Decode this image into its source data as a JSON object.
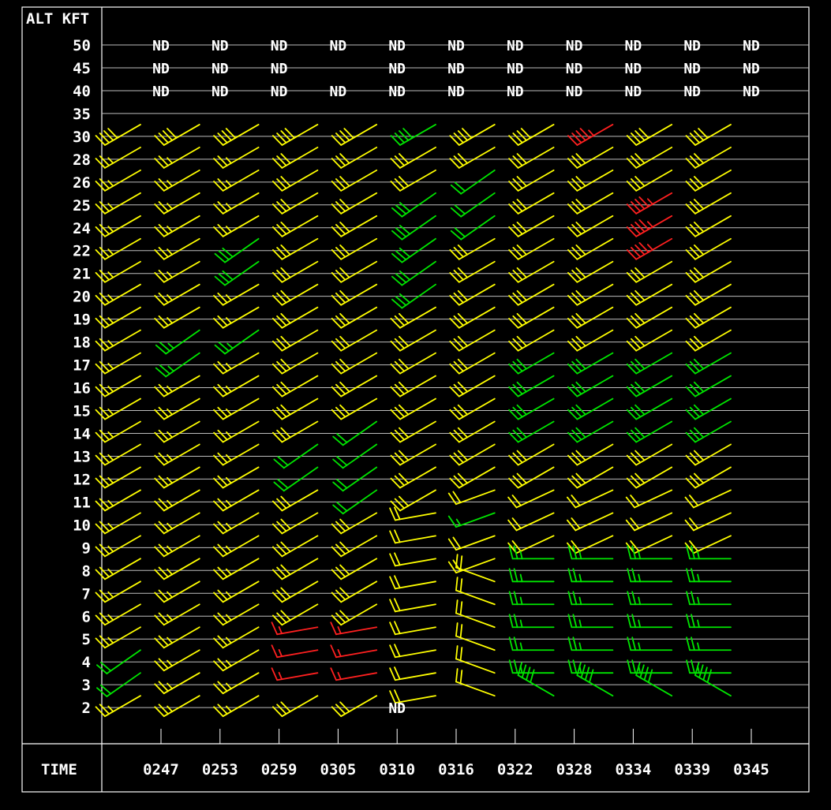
{
  "header": {
    "alt_label": "ALT KFT"
  },
  "footer": {
    "time_label": "TIME"
  },
  "no_data_text": "ND",
  "colors": {
    "background": "#000000",
    "frame": "#ffffff",
    "grid": "#bdbdbd",
    "yellow": "#ffff00",
    "green": "#00e600",
    "red": "#ff2020",
    "label": "#ffffff"
  },
  "chart_data": {
    "type": "wind_profile",
    "alt_labels": [
      "50",
      "45",
      "40",
      "35",
      "30",
      "28",
      "26",
      "25",
      "24",
      "22",
      "21",
      "20",
      "19",
      "18",
      "17",
      "16",
      "15",
      "14",
      "13",
      "12",
      "11",
      "10",
      "9",
      "8",
      "7",
      "6",
      "5",
      "4",
      "3",
      "2"
    ],
    "times": [
      "0247",
      "0253",
      "0259",
      "0305",
      "0310",
      "0316",
      "0322",
      "0328",
      "0334",
      "0339",
      "0345"
    ],
    "nd_cells": [
      [
        0,
        0
      ],
      [
        0,
        1
      ],
      [
        0,
        2
      ],
      [
        0,
        3
      ],
      [
        0,
        4
      ],
      [
        0,
        5
      ],
      [
        0,
        6
      ],
      [
        0,
        7
      ],
      [
        0,
        8
      ],
      [
        0,
        9
      ],
      [
        0,
        10
      ],
      [
        1,
        0
      ],
      [
        1,
        1
      ],
      [
        1,
        2
      ],
      [
        1,
        4
      ],
      [
        1,
        5
      ],
      [
        1,
        6
      ],
      [
        1,
        7
      ],
      [
        1,
        8
      ],
      [
        1,
        9
      ],
      [
        1,
        10
      ],
      [
        2,
        0
      ],
      [
        2,
        1
      ],
      [
        2,
        2
      ],
      [
        2,
        3
      ],
      [
        2,
        4
      ],
      [
        2,
        5
      ],
      [
        2,
        6
      ],
      [
        2,
        7
      ],
      [
        2,
        8
      ],
      [
        2,
        9
      ],
      [
        2,
        10
      ],
      [
        29,
        4
      ]
    ],
    "regions": [
      {
        "rows": [
          3,
          28
        ],
        "cols": [
          0,
          0
        ],
        "dir": 240,
        "speed": 30,
        "color": "yellow"
      },
      {
        "rows": [
          3,
          28
        ],
        "cols": [
          1,
          1
        ],
        "dir": 240,
        "speed": 30,
        "color": "yellow"
      },
      {
        "rows": [
          3,
          28
        ],
        "cols": [
          2,
          2
        ],
        "dir": 240,
        "speed": 30,
        "color": "yellow"
      },
      {
        "rows": [
          3,
          28
        ],
        "cols": [
          3,
          3
        ],
        "dir": 240,
        "speed": 30,
        "color": "yellow"
      },
      {
        "rows": [
          3,
          28
        ],
        "cols": [
          4,
          4
        ],
        "dir": 240,
        "speed": 30,
        "color": "yellow"
      },
      {
        "rows": [
          3,
          19
        ],
        "cols": [
          5,
          5
        ],
        "dir": 240,
        "speed": 30,
        "color": "yellow"
      },
      {
        "rows": [
          20,
          28
        ],
        "cols": [
          5,
          5
        ],
        "dir": 260,
        "speed": 20,
        "color": "yellow"
      },
      {
        "rows": [
          3,
          18
        ],
        "cols": [
          6,
          6
        ],
        "dir": 240,
        "speed": 30,
        "color": "yellow"
      },
      {
        "rows": [
          19,
          22
        ],
        "cols": [
          6,
          6
        ],
        "dir": 250,
        "speed": 20,
        "color": "yellow"
      },
      {
        "rows": [
          23,
          28
        ],
        "cols": [
          6,
          6
        ],
        "dir": 290,
        "speed": 20,
        "color": "yellow"
      },
      {
        "rows": [
          3,
          18
        ],
        "cols": [
          7,
          10
        ],
        "dir": 240,
        "speed": 30,
        "color": "yellow"
      },
      {
        "rows": [
          19,
          21
        ],
        "cols": [
          7,
          10
        ],
        "dir": 245,
        "speed": 20,
        "color": "yellow"
      },
      {
        "rows": [
          22,
          24
        ],
        "cols": [
          7,
          10
        ],
        "dir": 270,
        "speed": 20,
        "color": "yellow"
      },
      {
        "rows": [
          25,
          28
        ],
        "cols": [
          7,
          10
        ],
        "dir": 300,
        "speed": 25,
        "color": "yellow"
      },
      {
        "rows": [
          3,
          3
        ],
        "cols": [
          0,
          10
        ],
        "dir": 240,
        "speed": 40,
        "color": "yellow"
      },
      {
        "rows": [
          12,
          12
        ],
        "cols": [
          0,
          0
        ],
        "dir": 235,
        "speed": 30,
        "color": "green"
      },
      {
        "rows": [
          13,
          16
        ],
        "cols": [
          7,
          10
        ],
        "dir": 240,
        "speed": 30,
        "color": "green"
      },
      {
        "rows": [
          22,
          28
        ],
        "cols": [
          7,
          10
        ],
        "dir": 270,
        "speed": 25,
        "color": "green"
      },
      {
        "rows": [
          28,
          28
        ],
        "cols": [
          7,
          10
        ],
        "dir": 300,
        "speed": 40,
        "color": "green"
      },
      {
        "rows": [
          4,
          28
        ],
        "cols": [
          0,
          2
        ],
        "dir": 240,
        "speed": 25,
        "color": "yellow"
      },
      {
        "rows": [
          25,
          27
        ],
        "cols": [
          3,
          4
        ],
        "dir": 260,
        "speed": 15,
        "color": "red"
      },
      {
        "rows": [
          6,
          8
        ],
        "cols": [
          9,
          9
        ],
        "dir": 240,
        "speed": 45,
        "color": "red"
      },
      {
        "rows": [
          3,
          3
        ],
        "cols": [
          8,
          8
        ],
        "dir": 240,
        "speed": 45,
        "color": "red"
      }
    ],
    "cell_overrides": [
      {
        "row": 3,
        "col": 5,
        "dir": 240,
        "speed": 40,
        "color": "green"
      },
      {
        "row": 8,
        "col": 2,
        "dir": 235,
        "speed": 30,
        "color": "green"
      },
      {
        "row": 9,
        "col": 2,
        "dir": 235,
        "speed": 30,
        "color": "green"
      },
      {
        "row": 6,
        "col": 5,
        "dir": 235,
        "speed": 30,
        "color": "green"
      },
      {
        "row": 7,
        "col": 5,
        "dir": 235,
        "speed": 30,
        "color": "green"
      },
      {
        "row": 8,
        "col": 5,
        "dir": 235,
        "speed": 30,
        "color": "green"
      },
      {
        "row": 9,
        "col": 5,
        "dir": 235,
        "speed": 30,
        "color": "green"
      },
      {
        "row": 10,
        "col": 5,
        "dir": 235,
        "speed": 30,
        "color": "green"
      },
      {
        "row": 5,
        "col": 6,
        "dir": 235,
        "speed": 20,
        "color": "green"
      },
      {
        "row": 6,
        "col": 6,
        "dir": 235,
        "speed": 20,
        "color": "green"
      },
      {
        "row": 7,
        "col": 6,
        "dir": 235,
        "speed": 20,
        "color": "green"
      },
      {
        "row": 12,
        "col": 1,
        "dir": 235,
        "speed": 25,
        "color": "green"
      },
      {
        "row": 13,
        "col": 1,
        "dir": 235,
        "speed": 25,
        "color": "green"
      },
      {
        "row": 12,
        "col": 2,
        "dir": 235,
        "speed": 25,
        "color": "green"
      },
      {
        "row": 17,
        "col": 3,
        "dir": 235,
        "speed": 20,
        "color": "green"
      },
      {
        "row": 18,
        "col": 3,
        "dir": 235,
        "speed": 20,
        "color": "green"
      },
      {
        "row": 16,
        "col": 4,
        "dir": 235,
        "speed": 20,
        "color": "green"
      },
      {
        "row": 17,
        "col": 4,
        "dir": 235,
        "speed": 20,
        "color": "green"
      },
      {
        "row": 18,
        "col": 4,
        "dir": 235,
        "speed": 20,
        "color": "green"
      },
      {
        "row": 19,
        "col": 4,
        "dir": 235,
        "speed": 20,
        "color": "green"
      },
      {
        "row": 20,
        "col": 6,
        "dir": 250,
        "speed": 15,
        "color": "green"
      },
      {
        "row": 26,
        "col": 0,
        "dir": 235,
        "speed": 20,
        "color": "green"
      },
      {
        "row": 27,
        "col": 0,
        "dir": 235,
        "speed": 20,
        "color": "green"
      },
      {
        "row": 5,
        "col": 10,
        "dir": 240,
        "speed": 30,
        "color": "yellow"
      }
    ]
  }
}
